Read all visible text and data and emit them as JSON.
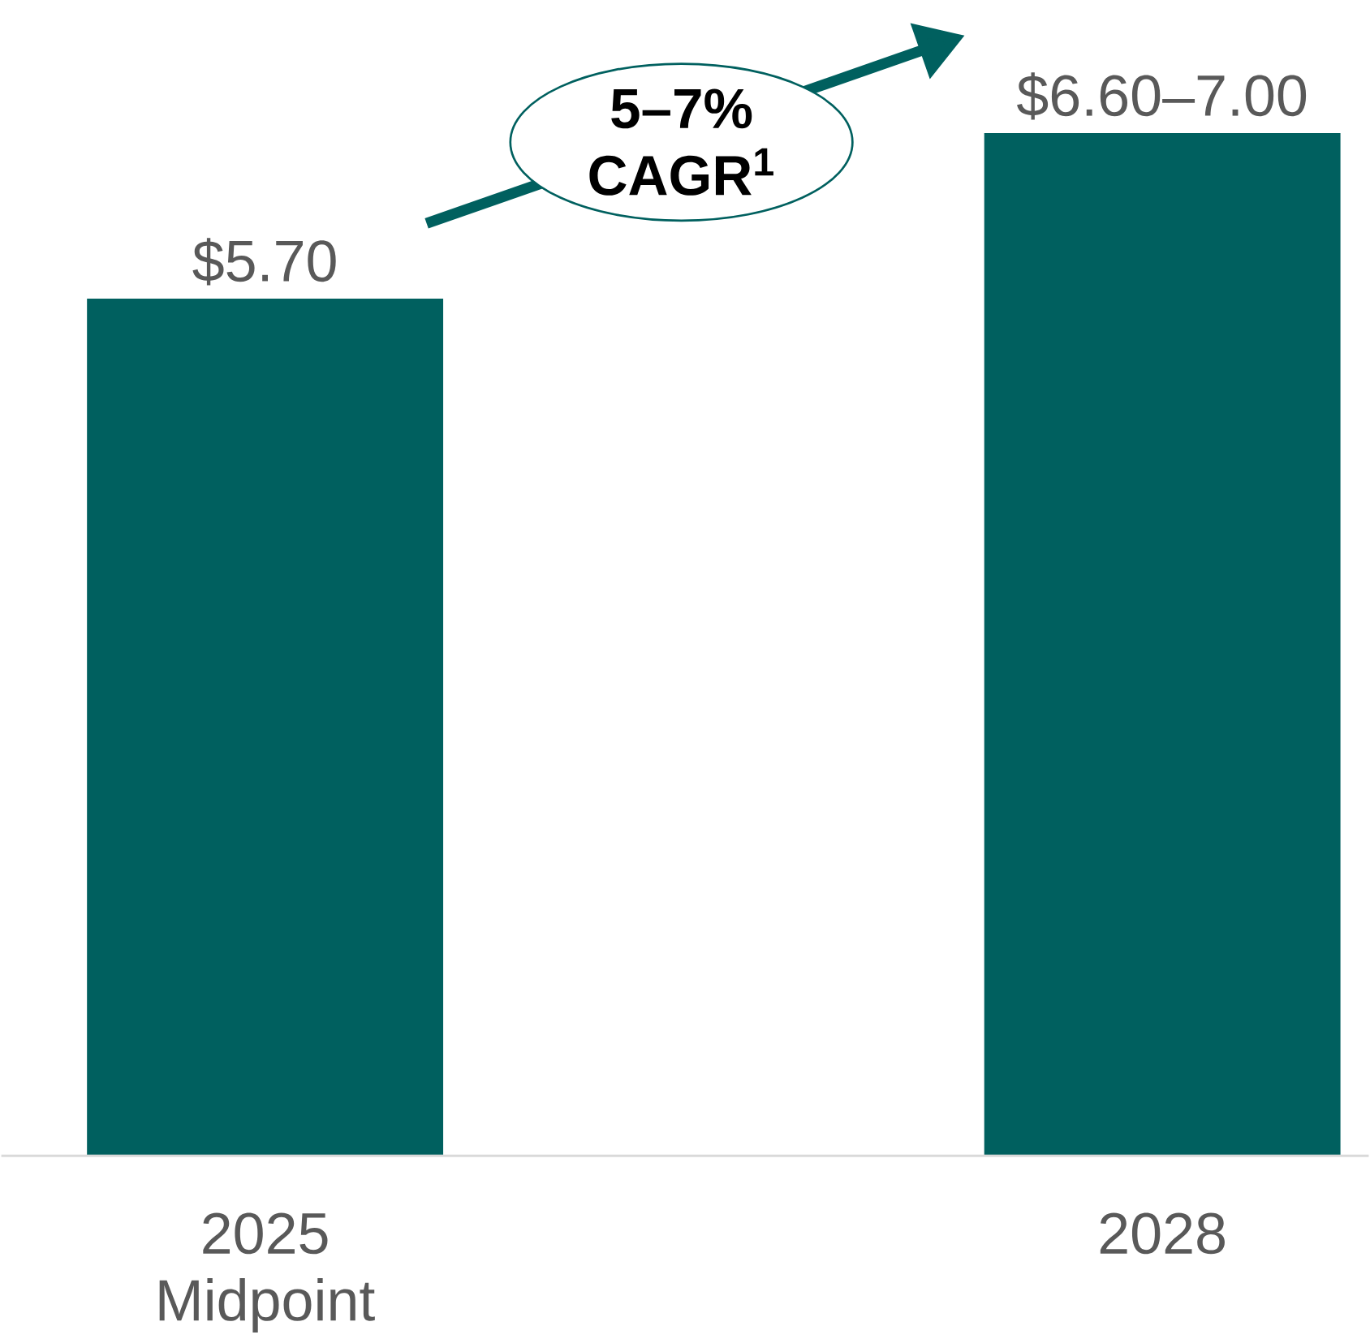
{
  "chart_data": {
    "type": "bar",
    "categories": [
      "2025 Midpoint",
      "2028"
    ],
    "values": [
      5.7,
      6.8
    ],
    "value_labels": [
      "$5.70",
      "$6.60–7.00"
    ],
    "color": "#00605f",
    "annotations": [
      "5–7% CAGR$^{1}$"
    ]
  }
}
